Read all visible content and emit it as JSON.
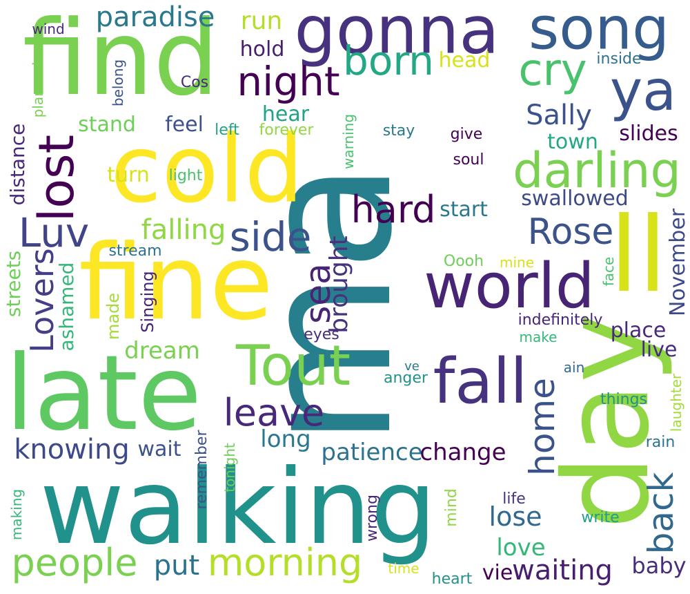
{
  "words": [
    {
      "text": "ma",
      "color": "#277f8e"
    },
    {
      "text": "day",
      "color": "#90d743"
    },
    {
      "text": "walking",
      "color": "#21918c"
    },
    {
      "text": "late",
      "color": "#5ec962"
    },
    {
      "text": "find",
      "color": "#7ad151"
    },
    {
      "text": "fine",
      "color": "#fde725"
    },
    {
      "text": "cold",
      "color": "#fde725"
    },
    {
      "text": "gonna",
      "color": "#46327e"
    },
    {
      "text": "ll",
      "color": "#d8e219"
    },
    {
      "text": "song",
      "color": "#365c8d"
    },
    {
      "text": "ya",
      "color": "#3b528b"
    },
    {
      "text": "world",
      "color": "#482475"
    },
    {
      "text": "fall",
      "color": "#46327e"
    },
    {
      "text": "Tout",
      "color": "#7ad151"
    },
    {
      "text": "darling",
      "color": "#7ad151"
    },
    {
      "text": "lost",
      "color": "#440154"
    },
    {
      "text": "Luv",
      "color": "#414487"
    },
    {
      "text": "night",
      "color": "#440154"
    },
    {
      "text": "cry",
      "color": "#4ac16d"
    },
    {
      "text": "born",
      "color": "#22a884"
    },
    {
      "text": "hard",
      "color": "#440154"
    },
    {
      "text": "side",
      "color": "#3b528b"
    },
    {
      "text": "Rose",
      "color": "#3b528b"
    },
    {
      "text": "leave",
      "color": "#482878"
    },
    {
      "text": "people",
      "color": "#7ad151"
    },
    {
      "text": "morning",
      "color": "#b5de2b"
    },
    {
      "text": "sea",
      "color": "#482475"
    },
    {
      "text": "back",
      "color": "#31688e"
    },
    {
      "text": "home",
      "color": "#3b528b"
    },
    {
      "text": "Lovers",
      "color": "#433e85"
    },
    {
      "text": "paradise",
      "color": "#2a788e"
    },
    {
      "text": "knowing",
      "color": "#3e4989"
    },
    {
      "text": "waiting",
      "color": "#481f70"
    },
    {
      "text": "falling",
      "color": "#90d743"
    },
    {
      "text": "Sally",
      "color": "#3b528b"
    },
    {
      "text": "patience",
      "color": "#2c728e"
    },
    {
      "text": "change",
      "color": "#440154"
    },
    {
      "text": "lose",
      "color": "#31688e"
    },
    {
      "text": "brought",
      "color": "#46327e"
    },
    {
      "text": "dream",
      "color": "#7ad151"
    },
    {
      "text": "put",
      "color": "#2c728e"
    },
    {
      "text": "love",
      "color": "#35b779"
    },
    {
      "text": "long",
      "color": "#2a788e"
    },
    {
      "text": "baby",
      "color": "#472d7b"
    },
    {
      "text": "run",
      "color": "#b5de2b"
    },
    {
      "text": "hold",
      "color": "#481f70"
    },
    {
      "text": "swallowed",
      "color": "#3e4989"
    },
    {
      "text": "November",
      "color": "#3e4989"
    },
    {
      "text": "place",
      "color": "#482878"
    },
    {
      "text": "live",
      "color": "#472d7b"
    },
    {
      "text": "vie",
      "color": "#440154"
    },
    {
      "text": "hear",
      "color": "#20a486"
    },
    {
      "text": "feel",
      "color": "#3b528b"
    },
    {
      "text": "stand",
      "color": "#6ece58"
    },
    {
      "text": "wait",
      "color": "#3b528b"
    },
    {
      "text": "slides",
      "color": "#440154"
    },
    {
      "text": "town",
      "color": "#22a884"
    },
    {
      "text": "start",
      "color": "#2a788e"
    },
    {
      "text": "turn",
      "color": "#d8e219"
    },
    {
      "text": "head",
      "color": "#d8e219"
    },
    {
      "text": "distance",
      "color": "#482878"
    },
    {
      "text": "streets",
      "color": "#6ece58"
    },
    {
      "text": "ashamed",
      "color": "#35b779"
    },
    {
      "text": "made",
      "color": "#a5db36"
    },
    {
      "text": "Singing",
      "color": "#482475"
    },
    {
      "text": "indefinitely",
      "color": "#482475"
    },
    {
      "text": "eyes",
      "color": "#472d7b"
    },
    {
      "text": "make",
      "color": "#35b779"
    },
    {
      "text": "light",
      "color": "#4ac16d"
    },
    {
      "text": "left",
      "color": "#20a486"
    },
    {
      "text": "forever",
      "color": "#90d743"
    },
    {
      "text": "warning",
      "color": "#4ac16d"
    },
    {
      "text": "stay",
      "color": "#2a788e"
    },
    {
      "text": "give",
      "color": "#440154"
    },
    {
      "text": "soul",
      "color": "#440154"
    },
    {
      "text": "Cos",
      "color": "#482878"
    },
    {
      "text": "belong",
      "color": "#3b528b"
    },
    {
      "text": "planned",
      "color": "#7ad151"
    },
    {
      "text": "wind",
      "color": "#482878"
    },
    {
      "text": "inside",
      "color": "#2c728e"
    },
    {
      "text": "stream",
      "color": "#2c728e"
    },
    {
      "text": "Oooh",
      "color": "#6ece58"
    },
    {
      "text": "mine",
      "color": "#d8e219"
    },
    {
      "text": "face",
      "color": "#4ac16d"
    },
    {
      "text": "anger",
      "color": "#21918c"
    },
    {
      "text": "ve",
      "color": "#2a788e"
    },
    {
      "text": "ain",
      "color": "#31688e"
    },
    {
      "text": "things",
      "color": "#21918c"
    },
    {
      "text": "laughter",
      "color": "#a5db36"
    },
    {
      "text": "rain",
      "color": "#2c728e"
    },
    {
      "text": "remember",
      "color": "#3b528b"
    },
    {
      "text": "tonight",
      "color": "#6ece58"
    },
    {
      "text": "making",
      "color": "#35b779"
    },
    {
      "text": "wrong",
      "color": "#482878"
    },
    {
      "text": "mind",
      "color": "#90d743"
    },
    {
      "text": "life",
      "color": "#46327e"
    },
    {
      "text": "write",
      "color": "#1f9e89"
    },
    {
      "text": "time",
      "color": "#d8e219"
    },
    {
      "text": "heart",
      "color": "#21918c"
    }
  ]
}
